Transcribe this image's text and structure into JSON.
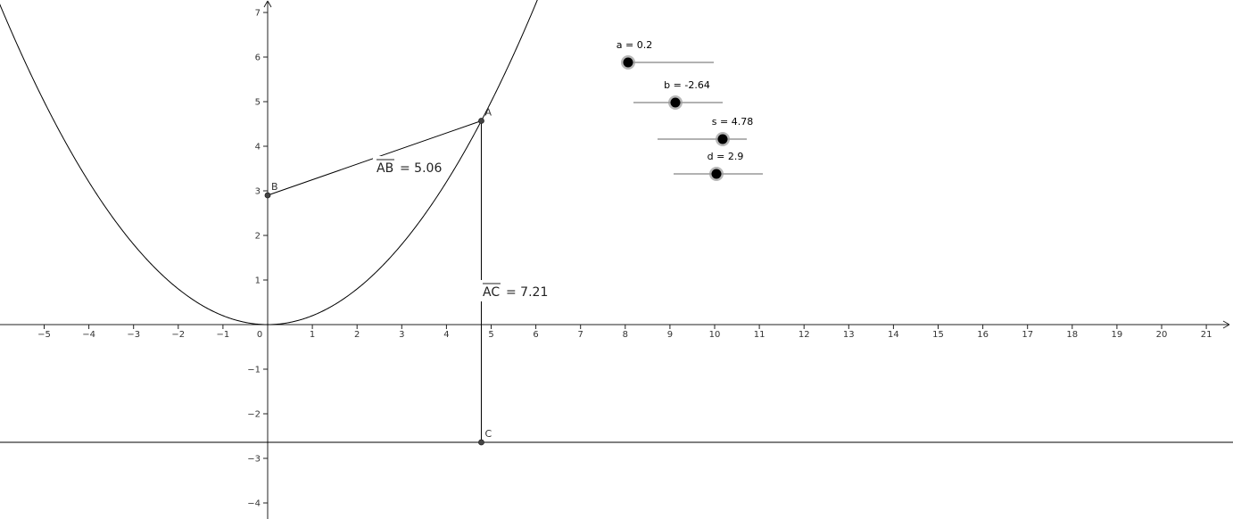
{
  "app": {
    "title": ""
  },
  "graph": {
    "x_axis": {
      "min": -6,
      "max": 21.6,
      "ticks": [
        -5,
        -4,
        -3,
        -2,
        -1,
        0,
        1,
        2,
        3,
        4,
        5,
        6,
        7,
        8,
        9,
        10,
        11,
        12,
        13,
        14,
        15,
        16,
        17,
        18,
        19,
        20,
        21
      ]
    },
    "y_axis": {
      "min": -4.3,
      "max": 7.25,
      "ticks": [
        -4,
        -3,
        -2,
        -1,
        1,
        2,
        3,
        4,
        5,
        6,
        7
      ]
    },
    "origin_label": "0",
    "parabola": {
      "expression": "y = a x^2",
      "a": 0.2
    },
    "directrix": {
      "y": -2.64
    },
    "points": [
      {
        "id": "A",
        "label": "A",
        "x": 4.78,
        "y": 4.57
      },
      {
        "id": "B",
        "label": "B",
        "x": 0,
        "y": 2.9
      },
      {
        "id": "C",
        "label": "C",
        "x": 4.78,
        "y": -2.64
      }
    ],
    "segments": [
      {
        "id": "AB",
        "from": "A",
        "to": "B",
        "name": "AB",
        "value_text": "= 5.06"
      },
      {
        "id": "AC",
        "from": "A",
        "to": "C",
        "name": "AC",
        "value_text": "= 7.21"
      }
    ],
    "colors": {
      "curve": "#000000",
      "axes": "#222222",
      "point": "#444444",
      "slider_line": "#666666",
      "slider_knob": "#000000",
      "slider_halo": "#999999"
    }
  },
  "sliders": [
    {
      "id": "a",
      "label": "a = 0.2",
      "value": 0.2,
      "min": -5,
      "max": 5
    },
    {
      "id": "b",
      "label": "b = -2.64",
      "value": -2.64,
      "min": -5,
      "max": 5
    },
    {
      "id": "s",
      "label": "s = 4.78",
      "value": 4.78,
      "min": -5,
      "max": 5
    },
    {
      "id": "d",
      "label": "d = 2.9",
      "value": 2.9,
      "min": -5,
      "max": 5
    }
  ]
}
